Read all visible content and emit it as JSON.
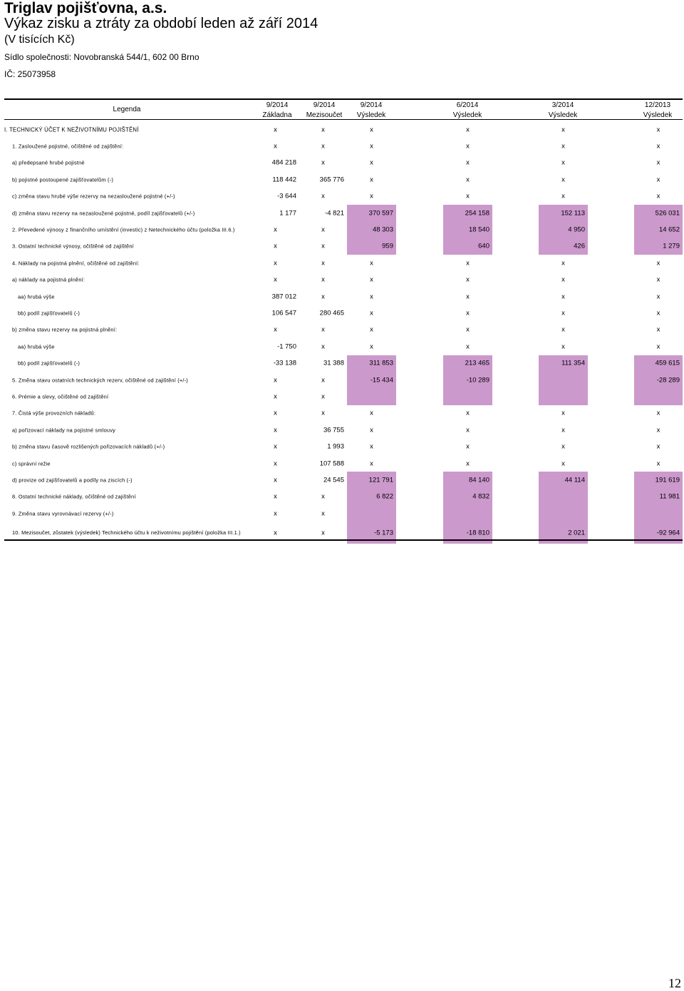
{
  "header": {
    "company": "Triglav pojišťovna, a.s.",
    "title": "Výkaz zisku a ztráty za období leden až září 2014",
    "unit": "(V tisících Kč)",
    "address": "Sídlo společnosti: Novobranská 544/1, 602 00 Brno",
    "ic": "IČ: 25073958"
  },
  "table": {
    "legend_label": "Legenda",
    "columns": [
      {
        "period": "9/2014",
        "kind": "Základna"
      },
      {
        "period": "9/2014",
        "kind": "Mezisoučet"
      },
      {
        "period": "9/2014",
        "kind": "Výsledek"
      },
      {
        "period": "6/2014",
        "kind": "Výsledek"
      },
      {
        "period": "3/2014",
        "kind": "Výsledek"
      },
      {
        "period": "12/2013",
        "kind": "Výsledek"
      }
    ],
    "highlight_color": "#cc99cc",
    "rows": [
      {
        "label": "I. TECHNICKÝ ÚČET K NEŽIVOTNÍMU POJIŠTĚNÍ",
        "level": 0,
        "values": [
          "x",
          "x",
          "x",
          "x",
          "x",
          "x"
        ],
        "highlight": [
          false,
          false,
          false,
          false,
          false,
          false
        ]
      },
      {
        "label": "1. Zasloužené pojistné, očištěné od zajištění:",
        "level": 1,
        "values": [
          "x",
          "x",
          "x",
          "x",
          "x",
          "x"
        ],
        "highlight": [
          false,
          false,
          false,
          false,
          false,
          false
        ]
      },
      {
        "label": "a) předepsané hrubé pojistné",
        "level": 1,
        "values": [
          "484 218",
          "x",
          "x",
          "x",
          "x",
          "x"
        ],
        "highlight": [
          false,
          false,
          false,
          false,
          false,
          false
        ]
      },
      {
        "label": "b) pojistné postoupené zajišťovatelům (-)",
        "level": 1,
        "values": [
          "118 442",
          "365 776",
          "x",
          "x",
          "x",
          "x"
        ],
        "highlight": [
          false,
          false,
          false,
          false,
          false,
          false
        ]
      },
      {
        "label": "c) změna stavu hrubé výše rezervy na nezasloužené pojistné (+/-)",
        "level": 1,
        "values": [
          "-3 644",
          "x",
          "x",
          "x",
          "x",
          "x"
        ],
        "highlight": [
          false,
          false,
          false,
          false,
          false,
          false
        ]
      },
      {
        "label": "d) změna stavu rezervy na nezasloužené pojistné, podíl zajišťovatelů (+/-)",
        "level": 1,
        "values": [
          "1 177",
          "-4 821",
          "370 597",
          "254 158",
          "152 113",
          "526 031"
        ],
        "highlight": [
          false,
          false,
          true,
          true,
          true,
          true
        ]
      },
      {
        "label": "2. Převedené výnosy z finančního umístění (investic) z Netechnického účtu (položka III.6.)",
        "level": 1,
        "values": [
          "x",
          "x",
          "48 303",
          "18 540",
          "4 950",
          "14 652"
        ],
        "highlight": [
          false,
          false,
          true,
          true,
          true,
          true
        ]
      },
      {
        "label": "3. Ostatní technické výnosy, očištěné od zajištění",
        "level": 1,
        "values": [
          "x",
          "x",
          "959",
          "640",
          "426",
          "1 279"
        ],
        "highlight": [
          false,
          false,
          true,
          true,
          true,
          true
        ]
      },
      {
        "label": "4. Náklady na pojistná plnění, očištěné od zajištění:",
        "level": 1,
        "values": [
          "x",
          "x",
          "x",
          "x",
          "x",
          "x"
        ],
        "highlight": [
          false,
          false,
          false,
          false,
          false,
          false
        ]
      },
      {
        "label": "a) náklady na pojistná plnění:",
        "level": 1,
        "values": [
          "x",
          "x",
          "x",
          "x",
          "x",
          "x"
        ],
        "highlight": [
          false,
          false,
          false,
          false,
          false,
          false
        ]
      },
      {
        "label": "aa) hrubá výše",
        "level": 2,
        "values": [
          "387 012",
          "x",
          "x",
          "x",
          "x",
          "x"
        ],
        "highlight": [
          false,
          false,
          false,
          false,
          false,
          false
        ]
      },
      {
        "label": "bb) podíl zajišťovatelů (-)",
        "level": 2,
        "values": [
          "106 547",
          "280 465",
          "x",
          "x",
          "x",
          "x"
        ],
        "highlight": [
          false,
          false,
          false,
          false,
          false,
          false
        ]
      },
      {
        "label": "b) změna stavu rezervy na pojistná plnění:",
        "level": 1,
        "values": [
          "x",
          "x",
          "x",
          "x",
          "x",
          "x"
        ],
        "highlight": [
          false,
          false,
          false,
          false,
          false,
          false
        ]
      },
      {
        "label": "aa) hrubá výše",
        "level": 2,
        "values": [
          "-1 750",
          "x",
          "x",
          "x",
          "x",
          "x"
        ],
        "highlight": [
          false,
          false,
          false,
          false,
          false,
          false
        ]
      },
      {
        "label": "bb) podíl zajišťovatelů (-)",
        "level": 2,
        "values": [
          "-33 138",
          "31 388",
          "311 853",
          "213 465",
          "111 354",
          "459 615"
        ],
        "highlight": [
          false,
          false,
          true,
          true,
          true,
          true
        ]
      },
      {
        "label": "5. Změna stavu ostatních technických rezerv, očištěné od zajištění (+/-)",
        "level": 1,
        "values": [
          "x",
          "x",
          "-15 434",
          "-10 289",
          "",
          "-28 289"
        ],
        "highlight": [
          false,
          false,
          true,
          true,
          true,
          true
        ]
      },
      {
        "label": "6. Prémie a slevy, očištěné od zajištění",
        "level": 1,
        "values": [
          "x",
          "x",
          "",
          "",
          "",
          ""
        ],
        "highlight": [
          false,
          false,
          true,
          true,
          true,
          true
        ]
      },
      {
        "label": "7. Čistá výše provozních nákladů:",
        "level": 1,
        "values": [
          "x",
          "x",
          "x",
          "x",
          "x",
          "x"
        ],
        "highlight": [
          false,
          false,
          false,
          false,
          false,
          false
        ]
      },
      {
        "label": "a) pořizovací náklady na pojistné smlouvy",
        "level": 1,
        "values": [
          "x",
          "36 755",
          "x",
          "x",
          "x",
          "x"
        ],
        "highlight": [
          false,
          false,
          false,
          false,
          false,
          false
        ]
      },
      {
        "label": "b) změna stavu časově rozlišených pořizovacích nákladů (+/-)",
        "level": 1,
        "values": [
          "x",
          "1 993",
          "x",
          "x",
          "x",
          "x"
        ],
        "highlight": [
          false,
          false,
          false,
          false,
          false,
          false
        ]
      },
      {
        "label": "c) správní režie",
        "level": 1,
        "values": [
          "x",
          "107 588",
          "x",
          "x",
          "x",
          "x"
        ],
        "highlight": [
          false,
          false,
          false,
          false,
          false,
          false
        ]
      },
      {
        "label": "d) provize od zajišťovatelů a podíly na ziscích (-)",
        "level": 1,
        "values": [
          "x",
          "24 545",
          "121 791",
          "84 140",
          "44 114",
          "191 619"
        ],
        "highlight": [
          false,
          false,
          true,
          true,
          true,
          true
        ]
      },
      {
        "label": "8. Ostatní technické náklady, očištěné od zajištění",
        "level": 1,
        "values": [
          "x",
          "x",
          "6 822",
          "4 832",
          "",
          "11 981"
        ],
        "highlight": [
          false,
          false,
          true,
          true,
          true,
          true
        ]
      },
      {
        "label": "9. Změna stavu vyrovnávací rezervy (+/-)",
        "level": 1,
        "values": [
          "x",
          "x",
          "",
          "",
          "",
          ""
        ],
        "highlight": [
          false,
          false,
          true,
          true,
          true,
          true
        ]
      },
      {
        "label": "10. Mezisoučet, zůstatek (výsledek) Technického účtu k neživotnímu pojištění (položka III.1.)",
        "level": 1,
        "wrap": true,
        "values": [
          "x",
          "x",
          "-5 173",
          "-18 810",
          "2 021",
          "-92 964"
        ],
        "highlight": [
          false,
          false,
          true,
          true,
          true,
          true
        ]
      }
    ]
  },
  "page_number": "12"
}
